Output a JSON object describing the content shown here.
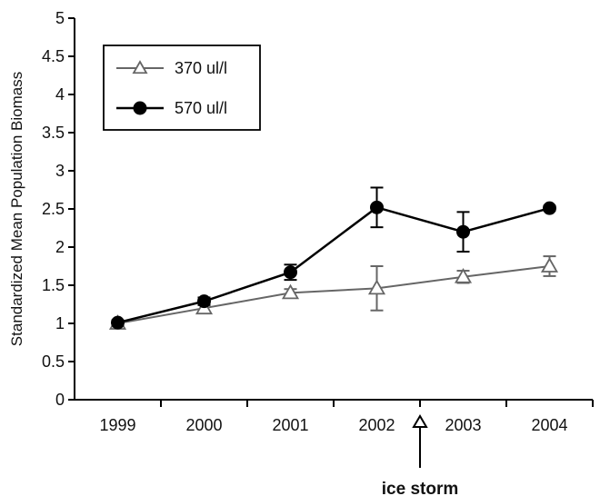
{
  "chart_data": {
    "type": "line",
    "title": "",
    "xlabel": "",
    "ylabel": "Standardized Mean Population Biomass",
    "categories": [
      "1999",
      "2000",
      "2001",
      "2002",
      "2003",
      "2004"
    ],
    "ylim": [
      0,
      5
    ],
    "yticks": [
      "0",
      "0.5",
      "1",
      "1.5",
      "2",
      "2.5",
      "3",
      "3.5",
      "4",
      "4.5",
      "5"
    ],
    "grid": false,
    "legend_position": "top-left",
    "series": [
      {
        "name": "370 ul/l",
        "marker": "open-triangle",
        "color": "#666666",
        "values": [
          1.0,
          1.2,
          1.4,
          1.46,
          1.61,
          1.75
        ],
        "errors": [
          0.02,
          0.05,
          0.05,
          0.29,
          0.08,
          0.13
        ]
      },
      {
        "name": "570 ul/l",
        "marker": "filled-circle",
        "color": "#000000",
        "values": [
          1.01,
          1.29,
          1.67,
          2.52,
          2.2,
          2.51
        ],
        "errors": [
          0.03,
          0.05,
          0.1,
          0.26,
          0.26,
          0.03
        ]
      }
    ],
    "annotation": {
      "text": "ice storm",
      "x_between": [
        "2002",
        "2003"
      ]
    }
  }
}
